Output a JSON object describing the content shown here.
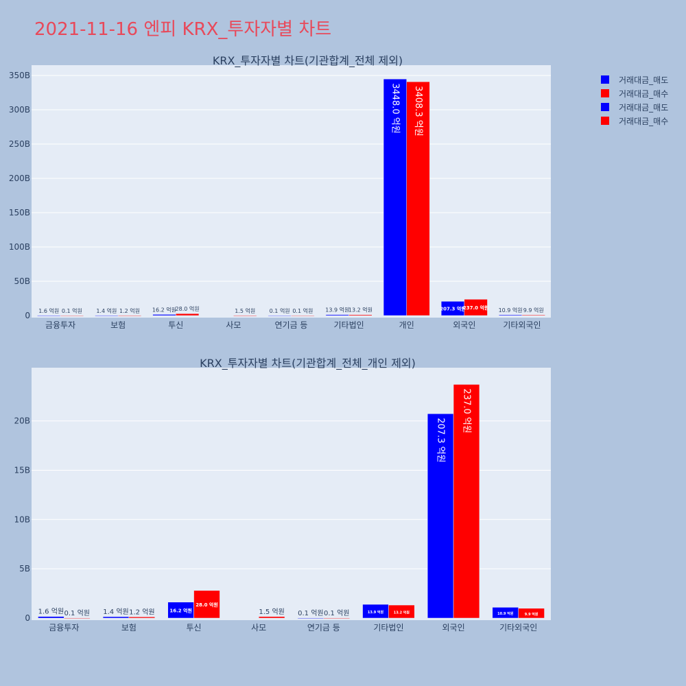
{
  "page_title": "2021-11-16 엔피 KRX_투자자별 차트",
  "legend": [
    {
      "label": "거래대금_매도",
      "color": "#0000ff"
    },
    {
      "label": "거래대금_매수",
      "color": "#ff0000"
    },
    {
      "label": "거래대금_매도",
      "color": "#0000ff"
    },
    {
      "label": "거래대금_매수",
      "color": "#ff0000"
    }
  ],
  "chart_data": [
    {
      "type": "bar",
      "title": "KRX_투자자별 차트(기관합계_전체 제외)",
      "categories": [
        "금융투자",
        "보험",
        "투신",
        "사모",
        "연기금 등",
        "기타법인",
        "개인",
        "외국인",
        "기타외국인"
      ],
      "series": [
        {
          "name": "거래대금_매도",
          "color": "#0000ff",
          "values": [
            0.16,
            0.14,
            1.62,
            null,
            0.01,
            1.39,
            344.8,
            20.73,
            1.09
          ],
          "labels": [
            "1.6 억원",
            "1.4 억원",
            "16.2 억원",
            "",
            "0.1 억원",
            "13.9 억원",
            "3448.0 억원",
            "207.3 억원",
            "10.9 억원"
          ]
        },
        {
          "name": "거래대금_매수",
          "color": "#ff0000",
          "values": [
            0.01,
            0.12,
            2.8,
            0.15,
            0.01,
            1.32,
            340.83,
            23.7,
            0.99
          ],
          "labels": [
            "0.1 억원",
            "1.2 억원",
            "28.0 억원",
            "1.5 억원",
            "0.1 억원",
            "13.2 억원",
            "3408.3 억원",
            "237.0 억원",
            "9.9 억원"
          ]
        }
      ],
      "ylim": [
        0,
        365
      ],
      "yticks": [
        0,
        50,
        100,
        150,
        200,
        250,
        300,
        350
      ],
      "ytick_labels": [
        "0",
        "50B",
        "100B",
        "150B",
        "200B",
        "250B",
        "300B",
        "350B"
      ],
      "grid": true
    },
    {
      "type": "bar",
      "title": "KRX_투자자별 차트(기관합계_전체_개인 제외)",
      "categories": [
        "금융투자",
        "보험",
        "투신",
        "사모",
        "연기금 등",
        "기타법인",
        "외국인",
        "기타외국인"
      ],
      "series": [
        {
          "name": "거래대금_매도",
          "color": "#0000ff",
          "values": [
            0.16,
            0.14,
            1.62,
            null,
            0.01,
            1.39,
            20.73,
            1.09
          ],
          "labels": [
            "1.6 억원",
            "1.4 억원",
            "16.2 억원",
            "",
            "0.1 억원",
            "13.9 억원",
            "207.3 억원",
            "10.9 억원"
          ]
        },
        {
          "name": "거래대금_매수",
          "color": "#ff0000",
          "values": [
            0.01,
            0.12,
            2.8,
            0.15,
            0.01,
            1.32,
            23.7,
            0.99
          ],
          "labels": [
            "0.1 억원",
            "1.2 억원",
            "28.0 억원",
            "1.5 억원",
            "0.1 억원",
            "13.2 억원",
            "237.0 억원",
            "9.9 억원"
          ]
        }
      ],
      "ylim": [
        0,
        25.4
      ],
      "yticks": [
        0,
        5,
        10,
        15,
        20
      ],
      "ytick_labels": [
        "0",
        "5B",
        "10B",
        "15B",
        "20B"
      ],
      "grid": true
    }
  ]
}
